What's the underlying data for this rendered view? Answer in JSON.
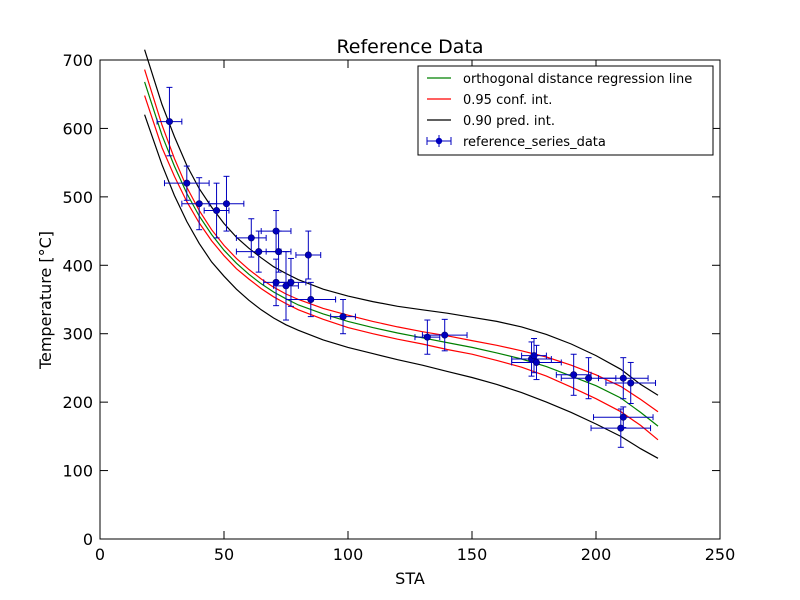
{
  "chart_data": {
    "type": "scatter",
    "title": "Reference Data",
    "xlabel": "STA",
    "ylabel": "Temperature [°C]",
    "xlim": [
      0,
      250
    ],
    "ylim": [
      0,
      700
    ],
    "x_ticks": [
      0,
      50,
      100,
      150,
      200,
      250
    ],
    "y_ticks": [
      0,
      100,
      200,
      300,
      400,
      500,
      600,
      700
    ],
    "grid": false,
    "legend_position": "top-right",
    "colors": {
      "fit": "#008000",
      "confidence": "#ff0000",
      "prediction": "#000000",
      "data": "#0000bf"
    },
    "legend": [
      {
        "label": "orthogonal distance regression line",
        "kind": "line",
        "color": "#008000"
      },
      {
        "label": "0.95 conf. int.",
        "kind": "line",
        "color": "#ff0000"
      },
      {
        "label": "0.90 pred. int.",
        "kind": "line",
        "color": "#000000"
      },
      {
        "label": "reference_series_data",
        "kind": "errorbar",
        "color": "#0000bf"
      }
    ],
    "curves": {
      "fit": {
        "x": [
          18,
          25,
          30,
          35,
          40,
          45,
          50,
          55,
          60,
          65,
          70,
          75,
          80,
          90,
          100,
          110,
          120,
          130,
          140,
          150,
          160,
          170,
          180,
          190,
          200,
          210,
          218,
          225
        ],
        "y": [
          668,
          590,
          545,
          505,
          472,
          445,
          422,
          403,
          387,
          373,
          361,
          351,
          342,
          329,
          318,
          309,
          301,
          294,
          287,
          280,
          272,
          263,
          252,
          238,
          224,
          206,
          185,
          165
        ]
      },
      "conf_upper": {
        "x": [
          18,
          25,
          30,
          35,
          40,
          45,
          50,
          55,
          60,
          65,
          70,
          75,
          80,
          90,
          100,
          110,
          120,
          130,
          140,
          150,
          160,
          170,
          180,
          190,
          200,
          210,
          218,
          225
        ],
        "y": [
          686,
          605,
          556,
          514,
          480,
          452,
          429,
          410,
          394,
          380,
          368,
          358,
          350,
          337,
          327,
          318,
          310,
          303,
          297,
          290,
          283,
          275,
          266,
          254,
          240,
          223,
          204,
          186
        ]
      },
      "conf_lower": {
        "x": [
          18,
          25,
          30,
          35,
          40,
          45,
          50,
          55,
          60,
          65,
          70,
          75,
          80,
          90,
          100,
          110,
          120,
          130,
          140,
          150,
          160,
          170,
          180,
          190,
          200,
          210,
          218,
          225
        ],
        "y": [
          648,
          572,
          530,
          493,
          462,
          436,
          414,
          395,
          380,
          366,
          354,
          344,
          335,
          321,
          309,
          300,
          292,
          285,
          277,
          270,
          261,
          251,
          238,
          222,
          205,
          186,
          166,
          145
        ]
      },
      "pred_upper": {
        "x": [
          18,
          25,
          30,
          35,
          40,
          45,
          50,
          55,
          60,
          65,
          70,
          75,
          80,
          90,
          100,
          110,
          120,
          130,
          140,
          150,
          160,
          170,
          180,
          190,
          200,
          210,
          218,
          225
        ],
        "y": [
          715,
          635,
          588,
          546,
          512,
          485,
          461,
          441,
          425,
          411,
          398,
          388,
          379,
          365,
          355,
          347,
          340,
          335,
          330,
          324,
          318,
          310,
          299,
          285,
          268,
          248,
          226,
          210
        ]
      },
      "pred_lower": {
        "x": [
          18,
          25,
          30,
          35,
          40,
          45,
          50,
          55,
          60,
          65,
          70,
          75,
          80,
          90,
          100,
          110,
          120,
          130,
          140,
          150,
          160,
          170,
          180,
          190,
          200,
          210,
          218,
          225
        ],
        "y": [
          620,
          547,
          502,
          464,
          432,
          405,
          384,
          365,
          349,
          335,
          323,
          313,
          305,
          291,
          280,
          271,
          262,
          254,
          245,
          236,
          226,
          214,
          200,
          185,
          168,
          150,
          132,
          118
        ]
      }
    },
    "points": [
      {
        "x": 28,
        "y": 610,
        "xerr": 5,
        "yerr": 50
      },
      {
        "x": 35,
        "y": 520,
        "xerr": 9,
        "yerr": 25
      },
      {
        "x": 40,
        "y": 490,
        "xerr": 7,
        "yerr": 38
      },
      {
        "x": 47,
        "y": 480,
        "xerr": 5,
        "yerr": 40
      },
      {
        "x": 51,
        "y": 490,
        "xerr": 7,
        "yerr": 40
      },
      {
        "x": 61,
        "y": 440,
        "xerr": 6,
        "yerr": 28
      },
      {
        "x": 64,
        "y": 420,
        "xerr": 9,
        "yerr": 30
      },
      {
        "x": 71,
        "y": 450,
        "xerr": 6,
        "yerr": 30
      },
      {
        "x": 71,
        "y": 375,
        "xerr": 5,
        "yerr": 34
      },
      {
        "x": 72,
        "y": 420,
        "xerr": 5,
        "yerr": 30
      },
      {
        "x": 75,
        "y": 370,
        "xerr": 5,
        "yerr": 50
      },
      {
        "x": 77,
        "y": 375,
        "xerr": 6,
        "yerr": 35
      },
      {
        "x": 84,
        "y": 415,
        "xerr": 5,
        "yerr": 35
      },
      {
        "x": 85,
        "y": 350,
        "xerr": 10,
        "yerr": 25
      },
      {
        "x": 98,
        "y": 325,
        "xerr": 5,
        "yerr": 25
      },
      {
        "x": 132,
        "y": 295,
        "xerr": 5,
        "yerr": 25
      },
      {
        "x": 139,
        "y": 298,
        "xerr": 9,
        "yerr": 23
      },
      {
        "x": 174,
        "y": 263,
        "xerr": 8,
        "yerr": 25
      },
      {
        "x": 175,
        "y": 268,
        "xerr": 5,
        "yerr": 25
      },
      {
        "x": 176,
        "y": 258,
        "xerr": 10,
        "yerr": 25
      },
      {
        "x": 191,
        "y": 240,
        "xerr": 7,
        "yerr": 30
      },
      {
        "x": 197,
        "y": 235,
        "xerr": 11,
        "yerr": 30
      },
      {
        "x": 210,
        "y": 162,
        "xerr": 12,
        "yerr": 28
      },
      {
        "x": 211,
        "y": 178,
        "xerr": 12,
        "yerr": 15
      },
      {
        "x": 211,
        "y": 235,
        "xerr": 10,
        "yerr": 30
      },
      {
        "x": 214,
        "y": 228,
        "xerr": 10,
        "yerr": 30
      }
    ]
  }
}
